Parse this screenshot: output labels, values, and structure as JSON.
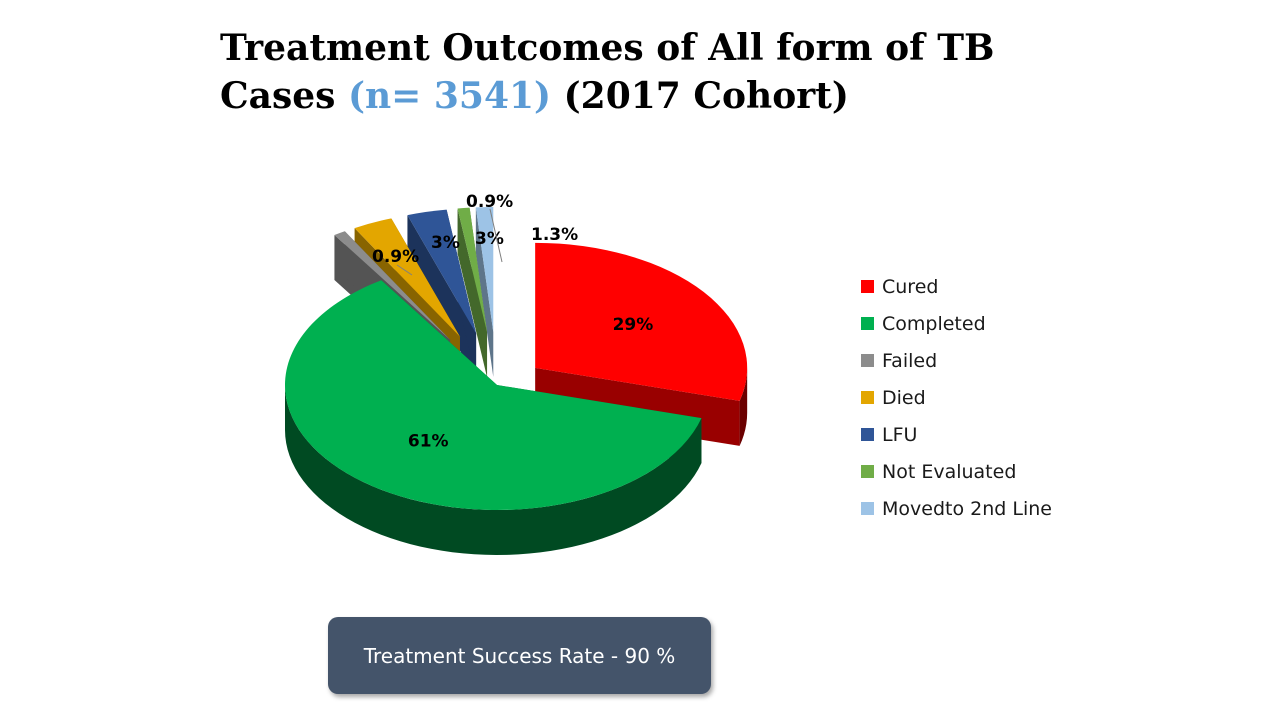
{
  "title": {
    "line1": "Treatment Outcomes of All form of TB",
    "line2_prefix": "Cases ",
    "count": "(n= 3541)",
    "line2_suffix": " (2017 Cohort)"
  },
  "chart_data": {
    "type": "pie",
    "style": "3d-exploded",
    "legend_position": "right",
    "slices": [
      {
        "name": "Cured",
        "value": 29,
        "label": "29%",
        "color": "#ff0000"
      },
      {
        "name": "Completed",
        "value": 61,
        "label": "61%",
        "color": "#00b050"
      },
      {
        "name": "Failed",
        "value": 0.9,
        "label": "0.9%",
        "color": "#8c8c8c"
      },
      {
        "name": "Died",
        "value": 3,
        "label": "3%",
        "color": "#e3a600"
      },
      {
        "name": "LFU",
        "value": 3,
        "label": "3%",
        "color": "#2f5597"
      },
      {
        "name": "Not Evaluated",
        "value": 0.9,
        "label": "0.9%",
        "color": "#70ad47"
      },
      {
        "name": "Movedto 2nd Line",
        "value": 1.3,
        "label": "1.3%",
        "color": "#9dc3e6"
      }
    ]
  },
  "success_box": {
    "text": "Treatment Success Rate - 90 %"
  }
}
